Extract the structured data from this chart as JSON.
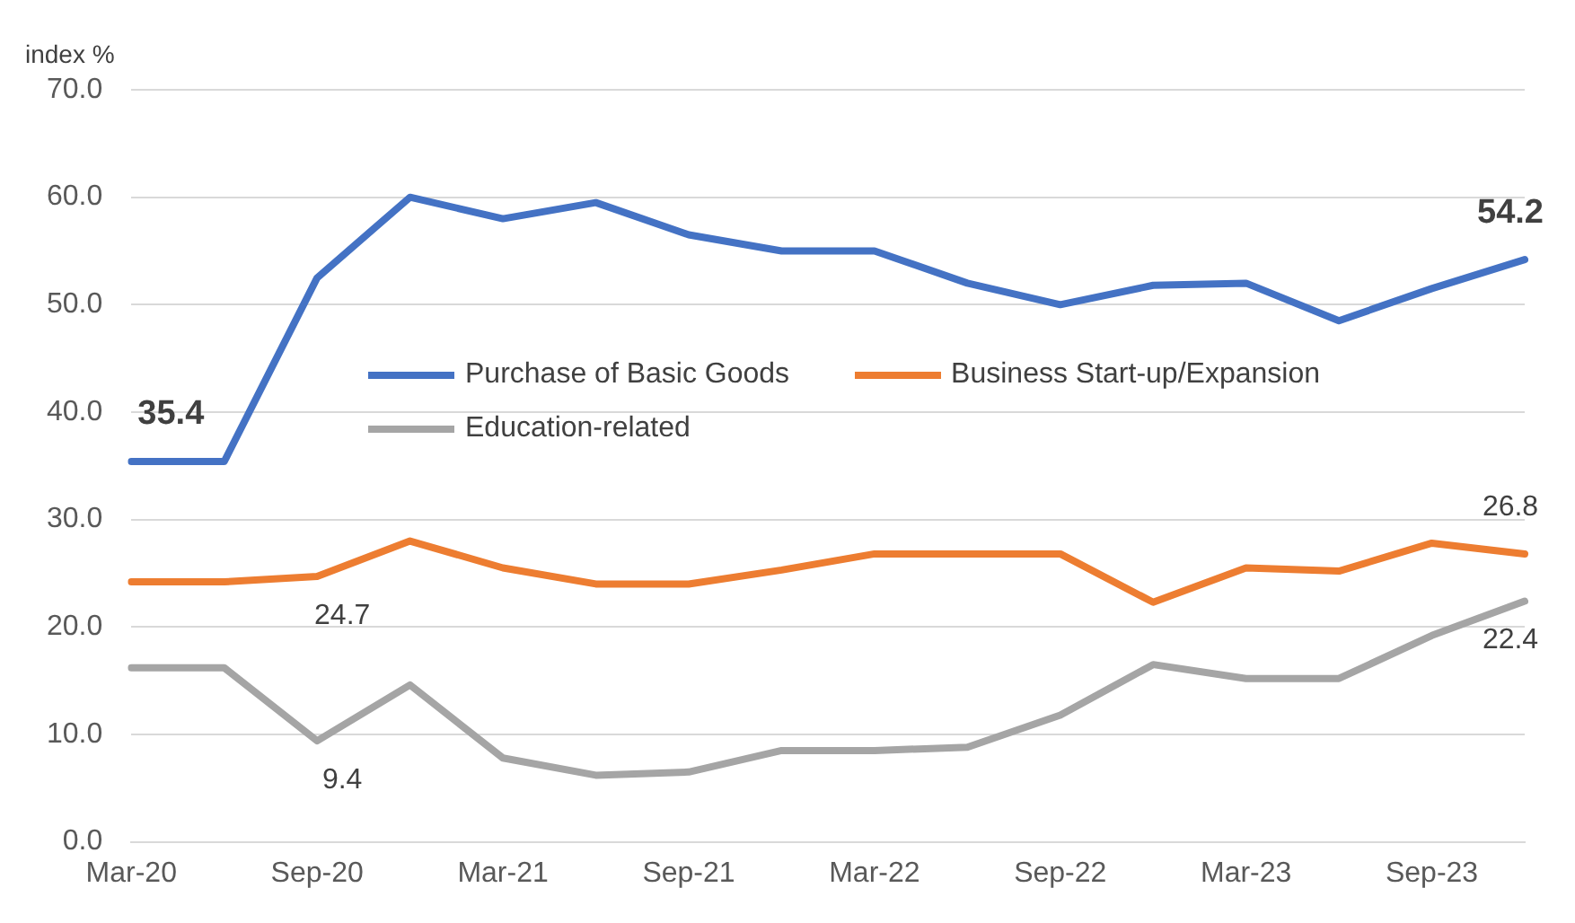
{
  "chart_data": {
    "type": "line",
    "ylabel": "index %",
    "categories": [
      "Mar-20",
      null,
      "Sep-20",
      null,
      "Mar-21",
      null,
      "Sep-21",
      null,
      "Mar-22",
      null,
      "Sep-22",
      null,
      "Mar-23",
      null,
      "Sep-23",
      null
    ],
    "series": [
      {
        "name": "Purchase of Basic Goods",
        "color": "#4472c4",
        "values": [
          35.4,
          35.4,
          52.5,
          60.0,
          58.0,
          59.5,
          56.5,
          55.0,
          55.0,
          52.0,
          50.0,
          51.8,
          52.0,
          48.5,
          51.5,
          54.2
        ],
        "value_labels": [
          "35.4",
          null,
          null,
          null,
          null,
          null,
          null,
          null,
          null,
          null,
          null,
          null,
          null,
          null,
          null,
          "54.2"
        ]
      },
      {
        "name": "Business Start-up/Expansion",
        "color": "#ed7d31",
        "values": [
          24.2,
          24.2,
          24.7,
          28.0,
          25.5,
          24.0,
          24.0,
          25.3,
          26.8,
          26.8,
          26.8,
          22.3,
          25.5,
          25.2,
          27.8,
          26.8
        ],
        "value_labels": [
          null,
          null,
          "24.7",
          null,
          null,
          null,
          null,
          null,
          null,
          null,
          null,
          null,
          null,
          null,
          null,
          "26.8"
        ]
      },
      {
        "name": "Education-related",
        "color": "#a5a5a5",
        "values": [
          16.2,
          16.2,
          9.4,
          14.6,
          7.8,
          6.2,
          6.5,
          8.5,
          8.5,
          8.8,
          11.8,
          16.5,
          15.2,
          15.2,
          19.2,
          22.4
        ],
        "value_labels": [
          null,
          null,
          "9.4",
          null,
          null,
          null,
          null,
          null,
          null,
          null,
          null,
          null,
          null,
          null,
          null,
          "22.4"
        ]
      }
    ],
    "ylim": [
      0,
      70
    ],
    "yticks": [
      {
        "value": 0,
        "label": "0.0"
      },
      {
        "value": 10,
        "label": "10.0"
      },
      {
        "value": 20,
        "label": "20.0"
      },
      {
        "value": 30,
        "label": "30.0"
      },
      {
        "value": 40,
        "label": "40.0"
      },
      {
        "value": 50,
        "label": "50.0"
      },
      {
        "value": 60,
        "label": "60.0"
      },
      {
        "value": 70,
        "label": "70.0"
      }
    ],
    "grid": "y",
    "legend": "center",
    "marker": "none",
    "line_style": "solid"
  }
}
